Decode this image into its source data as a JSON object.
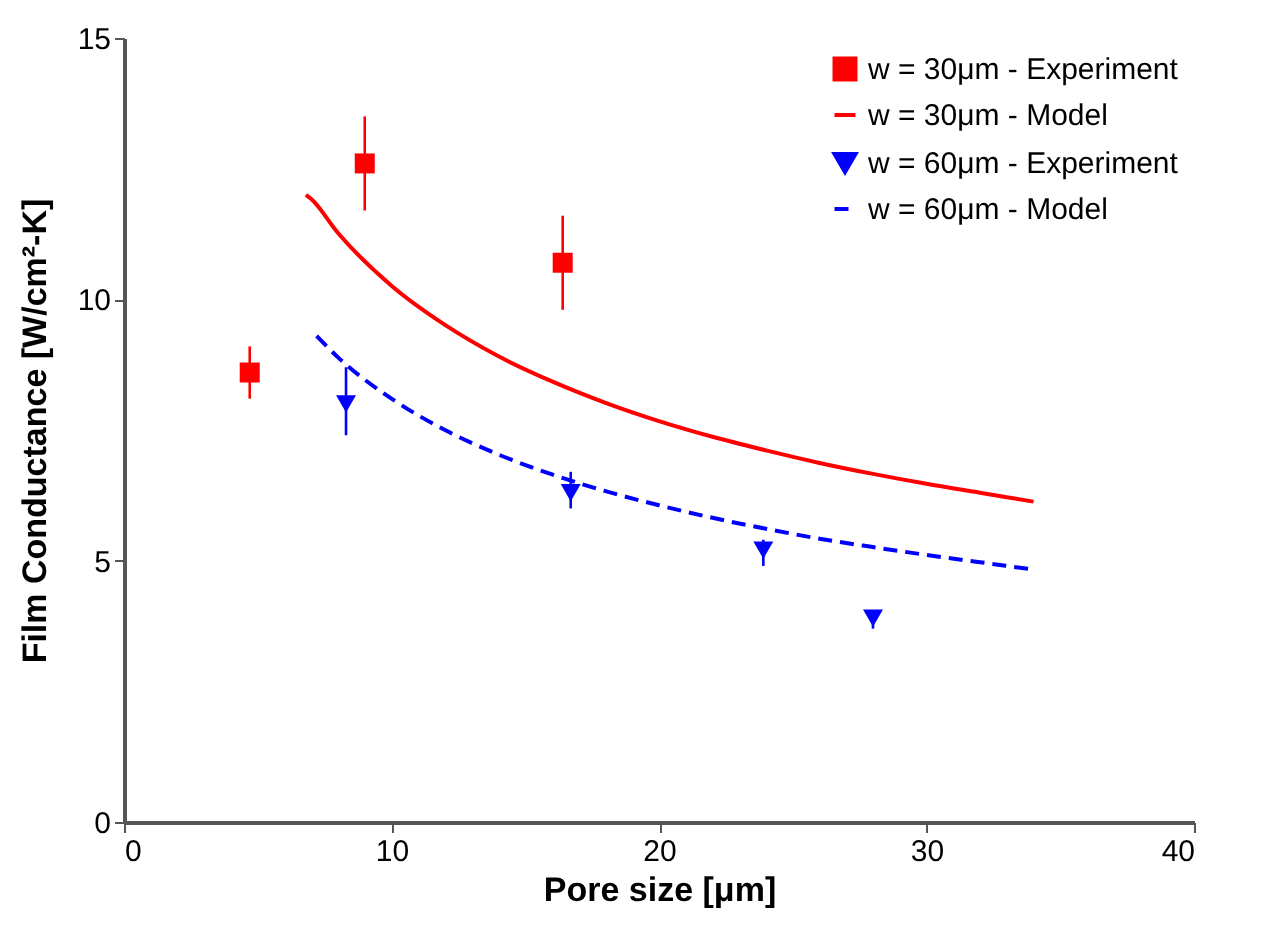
{
  "chart_data": {
    "type": "scatter",
    "xlabel": "Pore size [μm]",
    "ylabel": "Film Conductance [W/cm²-K]",
    "xlim": [
      0,
      40
    ],
    "xticks": [
      0,
      10,
      20,
      30,
      40
    ],
    "ylim": [
      0,
      15
    ],
    "yticks": [
      0,
      5,
      10,
      15
    ],
    "grid": false,
    "legend": "top right",
    "series": [
      {
        "name": "w = 30μm - Experiment",
        "color": "#ff0000",
        "marker": "square",
        "x": [
          4.7,
          9.0,
          16.4
        ],
        "values": [
          8.6,
          12.6,
          10.7
        ],
        "errors": [
          [
            8.1,
            9.1
          ],
          [
            11.7,
            13.5
          ],
          [
            9.8,
            11.6
          ]
        ]
      },
      {
        "name": "w = 30μm - Model",
        "type": "line",
        "color": "#ff0000",
        "line_style": "solid",
        "marker": "none",
        "x": [
          6.8,
          7,
          8,
          10,
          12,
          14,
          16,
          18,
          20,
          22,
          24,
          26,
          28,
          30,
          32,
          34
        ],
        "values": [
          12.0,
          11.92,
          11.27,
          10.26,
          9.51,
          8.91,
          8.43,
          8.02,
          7.67,
          7.37,
          7.11,
          6.87,
          6.66,
          6.47,
          6.3,
          6.13
        ]
      },
      {
        "name": "w = 60μm - Experiment",
        "color": "#0000ff",
        "marker": "triangle",
        "x": [
          8.3,
          16.7,
          23.9,
          28.0
        ],
        "values": [
          8.0,
          6.3,
          5.2,
          3.9
        ],
        "errors": [
          [
            7.4,
            8.7
          ],
          [
            6.0,
            6.7
          ],
          [
            4.9,
            5.4
          ],
          [
            3.7,
            4.0
          ]
        ]
      },
      {
        "name": "w = 60μm - Model",
        "type": "line",
        "color": "#0000ff",
        "line_style": "dashed",
        "marker": "none",
        "x": [
          7.2,
          8,
          10,
          12,
          14,
          16,
          18,
          20,
          22,
          24,
          26,
          28,
          30,
          32,
          34
        ],
        "values": [
          9.3,
          8.89,
          8.1,
          7.5,
          7.03,
          6.65,
          6.33,
          6.06,
          5.82,
          5.61,
          5.42,
          5.26,
          5.11,
          4.97,
          4.83
        ]
      }
    ]
  }
}
